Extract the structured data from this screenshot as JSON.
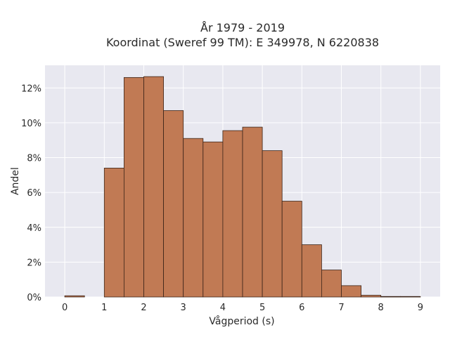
{
  "chart_data": {
    "type": "bar",
    "title_line1": "År 1979 - 2019",
    "title_line2": "Koordinat (Sweref 99 TM): E 349978, N 6220838",
    "xlabel": "Vågperiod (s)",
    "ylabel": "Andel",
    "xlim": [
      -0.5,
      9.5
    ],
    "ylim": [
      0,
      13.3
    ],
    "x_ticks": [
      "0",
      "1",
      "2",
      "3",
      "4",
      "5",
      "6",
      "7",
      "8",
      "9"
    ],
    "y_ticks": [
      "0%",
      "2%",
      "4%",
      "6%",
      "8%",
      "10%",
      "12%"
    ],
    "bin_width": 0.5,
    "bins": [
      {
        "start": 0.0,
        "value": 0.07
      },
      {
        "start": 0.5,
        "value": 0.0
      },
      {
        "start": 1.0,
        "value": 7.4
      },
      {
        "start": 1.5,
        "value": 12.6
      },
      {
        "start": 2.0,
        "value": 12.65
      },
      {
        "start": 2.5,
        "value": 10.7
      },
      {
        "start": 3.0,
        "value": 9.1
      },
      {
        "start": 3.5,
        "value": 8.9
      },
      {
        "start": 4.0,
        "value": 9.55
      },
      {
        "start": 4.5,
        "value": 9.75
      },
      {
        "start": 5.0,
        "value": 8.4
      },
      {
        "start": 5.5,
        "value": 5.5
      },
      {
        "start": 6.0,
        "value": 3.0
      },
      {
        "start": 6.5,
        "value": 1.55
      },
      {
        "start": 7.0,
        "value": 0.65
      },
      {
        "start": 7.5,
        "value": 0.1
      },
      {
        "start": 8.0,
        "value": 0.03
      },
      {
        "start": 8.5,
        "value": 0.03
      }
    ],
    "bar_color": "#c17a54",
    "bar_edge_color": "#3b2418",
    "plot_bg": "#e8e8f0",
    "grid": true,
    "grid_color": "#ffffff"
  }
}
